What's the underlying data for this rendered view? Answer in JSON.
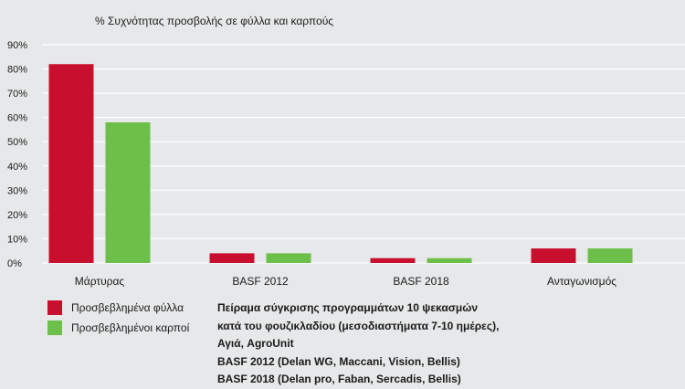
{
  "chart_data": {
    "type": "bar",
    "title": "% Συχνότητας προσβολής σε φύλλα και καρπούς",
    "categories": [
      "Μάρτυρας",
      "BASF 2012",
      "BASF 2018",
      "Ανταγωνισμός"
    ],
    "series": [
      {
        "name": "Προσβεβλημένα φύλλα",
        "color": "#c8102e",
        "values": [
          82,
          4,
          2,
          6
        ]
      },
      {
        "name": "Προσβεβλημένοι καρποί",
        "color": "#6cc04a",
        "values": [
          58,
          4,
          2,
          6
        ]
      }
    ],
    "ylim": [
      0,
      90
    ],
    "yticks": [
      "0%",
      "10%",
      "20%",
      "30%",
      "40%",
      "50%",
      "60%",
      "70%",
      "80%",
      "90%"
    ],
    "grid": true,
    "legend_position": "bottom-left"
  },
  "notes": [
    "Πείραμα σύγκρισης προγραμμάτων 10 ψεκασμών",
    "κατά του φουζικλαδίου (μεσοδιαστήματα 7-10 ημέρες),",
    "Αγιά, AgroUnit",
    "BASF 2012 (Delan WG, Maccani, Vision, Bellis)",
    "BASF 2018 (Delan pro, Faban, Sercadis, Bellis)"
  ],
  "colors": {
    "background": "#e7e8e9",
    "grid": "#ffffff"
  }
}
